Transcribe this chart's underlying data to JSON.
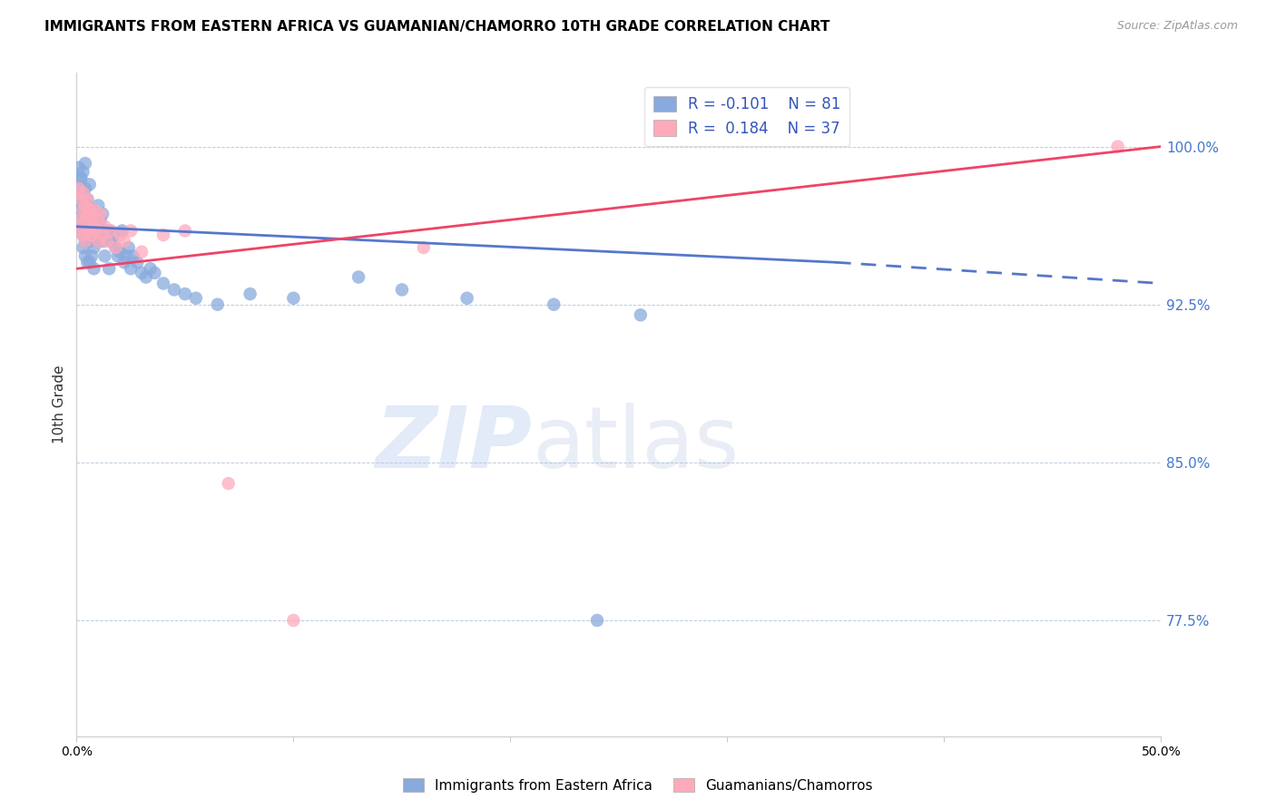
{
  "title": "IMMIGRANTS FROM EASTERN AFRICA VS GUAMANIAN/CHAMORRO 10TH GRADE CORRELATION CHART",
  "source": "Source: ZipAtlas.com",
  "ylabel": "10th Grade",
  "ytick_labels": [
    "100.0%",
    "92.5%",
    "85.0%",
    "77.5%"
  ],
  "ytick_values": [
    1.0,
    0.925,
    0.85,
    0.775
  ],
  "xlim": [
    0.0,
    0.5
  ],
  "ylim": [
    0.72,
    1.035
  ],
  "blue_R": "-0.101",
  "blue_N": "81",
  "pink_R": "0.184",
  "pink_N": "37",
  "blue_color": "#88AADD",
  "pink_color": "#FFAABB",
  "blue_line_color": "#5577CC",
  "pink_line_color": "#EE4466",
  "legend_label_blue": "Immigrants from Eastern Africa",
  "legend_label_pink": "Guamanians/Chamorros",
  "watermark_zip": "ZIP",
  "watermark_atlas": "atlas",
  "blue_trend_x0": 0.0,
  "blue_trend_x1": 0.35,
  "blue_trend_x2": 0.5,
  "blue_trend_y0": 0.962,
  "blue_trend_y1": 0.945,
  "blue_trend_y2": 0.935,
  "pink_trend_x0": 0.0,
  "pink_trend_x1": 0.5,
  "pink_trend_y0": 0.942,
  "pink_trend_y1": 1.0,
  "blue_scatter_x": [
    0.001,
    0.001,
    0.002,
    0.002,
    0.002,
    0.002,
    0.003,
    0.003,
    0.003,
    0.003,
    0.003,
    0.004,
    0.004,
    0.004,
    0.004,
    0.004,
    0.005,
    0.005,
    0.005,
    0.005,
    0.005,
    0.006,
    0.006,
    0.006,
    0.006,
    0.007,
    0.007,
    0.007,
    0.007,
    0.008,
    0.008,
    0.008,
    0.008,
    0.009,
    0.009,
    0.01,
    0.01,
    0.01,
    0.011,
    0.011,
    0.012,
    0.012,
    0.013,
    0.013,
    0.014,
    0.015,
    0.015,
    0.016,
    0.017,
    0.018,
    0.019,
    0.02,
    0.021,
    0.022,
    0.023,
    0.024,
    0.025,
    0.026,
    0.028,
    0.03,
    0.032,
    0.034,
    0.036,
    0.04,
    0.045,
    0.05,
    0.055,
    0.065,
    0.08,
    0.1,
    0.13,
    0.15,
    0.18,
    0.22,
    0.26,
    0.001,
    0.002,
    0.003,
    0.004,
    0.006,
    0.24
  ],
  "blue_scatter_y": [
    0.97,
    0.98,
    0.965,
    0.975,
    0.96,
    0.985,
    0.958,
    0.968,
    0.978,
    0.952,
    0.972,
    0.962,
    0.955,
    0.97,
    0.98,
    0.948,
    0.965,
    0.958,
    0.972,
    0.945,
    0.975,
    0.962,
    0.97,
    0.955,
    0.945,
    0.965,
    0.958,
    0.948,
    0.97,
    0.96,
    0.952,
    0.968,
    0.942,
    0.958,
    0.965,
    0.96,
    0.955,
    0.972,
    0.958,
    0.965,
    0.955,
    0.968,
    0.96,
    0.948,
    0.958,
    0.96,
    0.942,
    0.955,
    0.958,
    0.952,
    0.948,
    0.95,
    0.96,
    0.945,
    0.948,
    0.952,
    0.942,
    0.948,
    0.945,
    0.94,
    0.938,
    0.942,
    0.94,
    0.935,
    0.932,
    0.93,
    0.928,
    0.925,
    0.93,
    0.928,
    0.938,
    0.932,
    0.928,
    0.925,
    0.92,
    0.99,
    0.985,
    0.988,
    0.992,
    0.982,
    0.775
  ],
  "pink_scatter_x": [
    0.001,
    0.001,
    0.002,
    0.002,
    0.003,
    0.003,
    0.003,
    0.004,
    0.004,
    0.004,
    0.005,
    0.005,
    0.006,
    0.006,
    0.007,
    0.007,
    0.008,
    0.008,
    0.009,
    0.01,
    0.01,
    0.011,
    0.012,
    0.013,
    0.014,
    0.016,
    0.018,
    0.02,
    0.022,
    0.025,
    0.03,
    0.04,
    0.05,
    0.07,
    0.1,
    0.16,
    0.48
  ],
  "pink_scatter_y": [
    0.98,
    0.965,
    0.975,
    0.96,
    0.97,
    0.958,
    0.978,
    0.965,
    0.972,
    0.955,
    0.968,
    0.975,
    0.96,
    0.97,
    0.965,
    0.958,
    0.962,
    0.97,
    0.96,
    0.965,
    0.955,
    0.968,
    0.958,
    0.962,
    0.955,
    0.96,
    0.952,
    0.958,
    0.955,
    0.96,
    0.95,
    0.958,
    0.96,
    0.84,
    0.775,
    0.952,
    1.0
  ]
}
